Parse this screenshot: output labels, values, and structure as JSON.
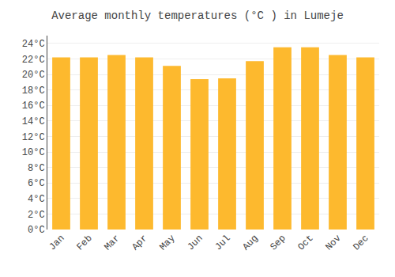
{
  "chart_data": {
    "type": "bar",
    "title": "Average monthly temperatures (°C ) in Lumeje",
    "categories": [
      "Jan",
      "Feb",
      "Mar",
      "Apr",
      "May",
      "Jun",
      "Jul",
      "Aug",
      "Sep",
      "Oct",
      "Nov",
      "Dec"
    ],
    "values": [
      22.2,
      22.2,
      22.5,
      22.2,
      21.1,
      19.4,
      19.5,
      21.7,
      23.5,
      23.5,
      22.5,
      22.2
    ],
    "color": "#FDB92E",
    "ylim": [
      0,
      25
    ],
    "yticks": [
      {
        "value": 0,
        "label": "0°C"
      },
      {
        "value": 2,
        "label": "2°C"
      },
      {
        "value": 4,
        "label": "4°C"
      },
      {
        "value": 6,
        "label": "6°C"
      },
      {
        "value": 8,
        "label": "8°C"
      },
      {
        "value": 10,
        "label": "10°C"
      },
      {
        "value": 12,
        "label": "12°C"
      },
      {
        "value": 14,
        "label": "14°C"
      },
      {
        "value": 16,
        "label": "16°C"
      },
      {
        "value": 18,
        "label": "18°C"
      },
      {
        "value": 20,
        "label": "20°C"
      },
      {
        "value": 22,
        "label": "22°C"
      },
      {
        "value": 24,
        "label": "24°C"
      }
    ],
    "grid": true
  }
}
